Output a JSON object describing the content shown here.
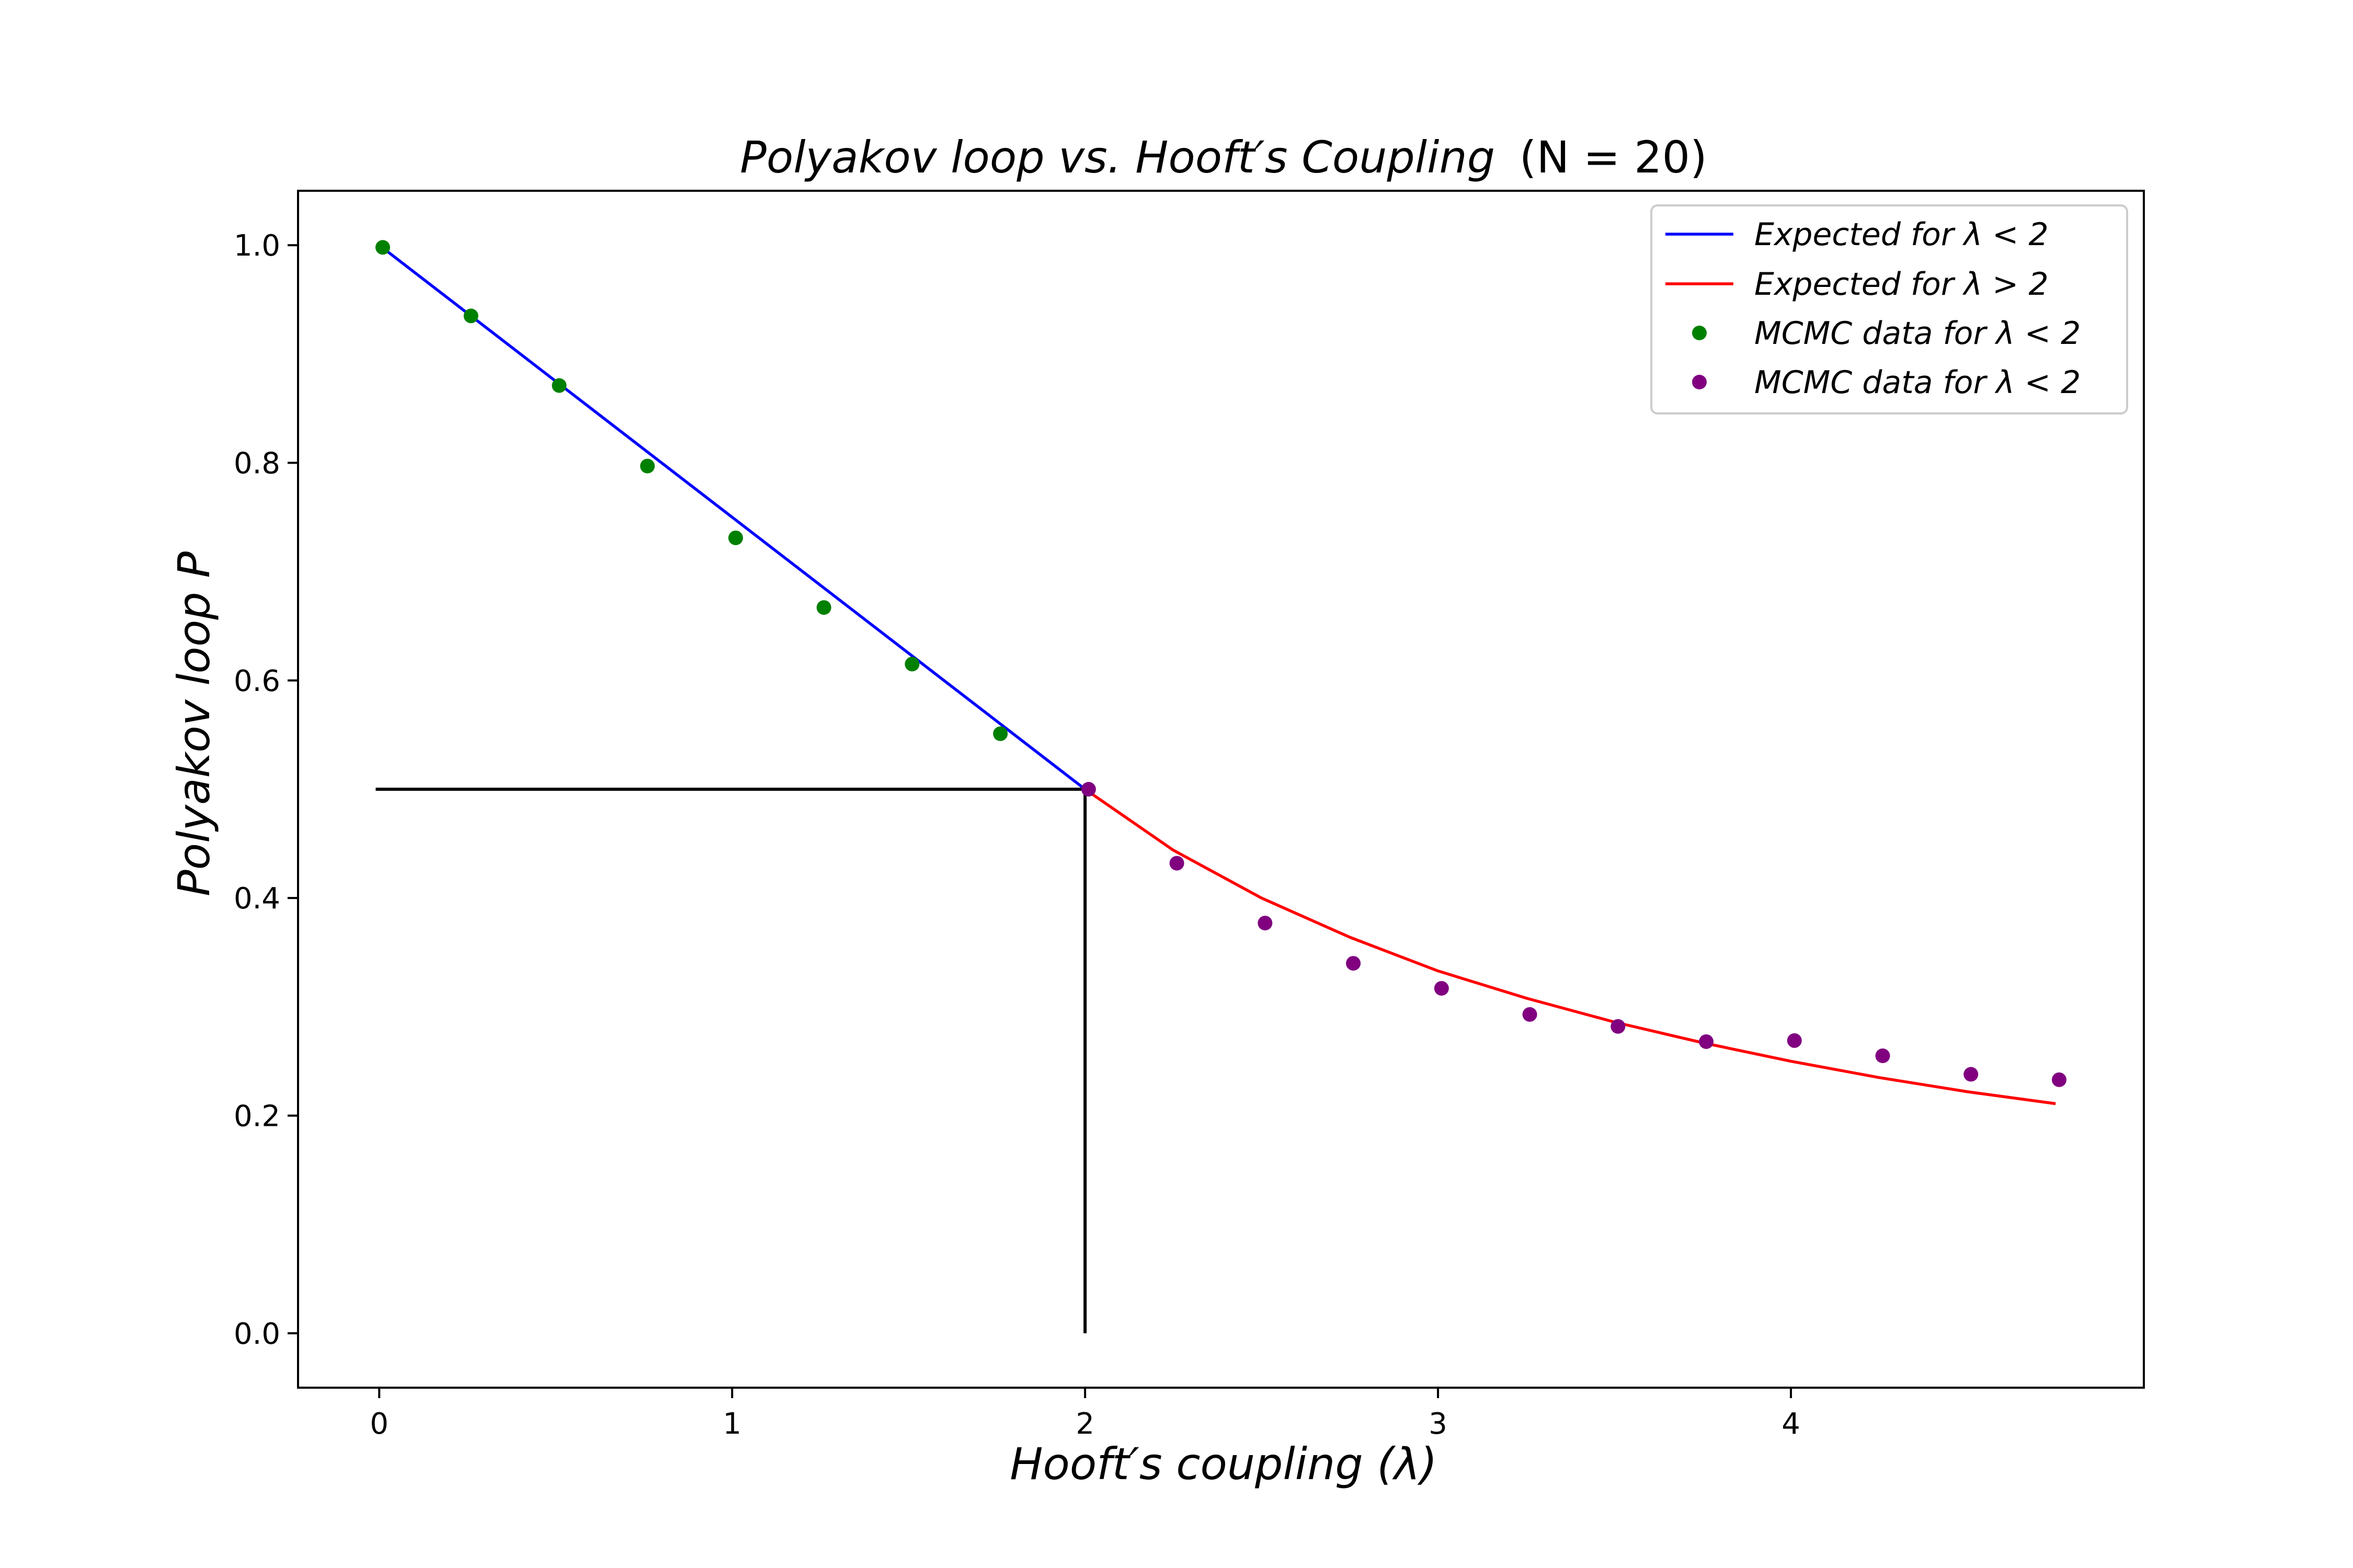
{
  "chart_data": {
    "type": "line",
    "title": "Polyakov loop vs. Hooft's Coupling (N = 20)",
    "title_parts": {
      "main": "Polyakov loop vs. Hooft′s Coupling",
      "suffix": "(N = 20)"
    },
    "xlabel": "Hooft′s coupling (λ)",
    "ylabel": "Polyakov loop P",
    "xlim": [
      -0.23,
      5.0
    ],
    "ylim": [
      -0.05,
      1.05
    ],
    "x_ticks": [
      0,
      1,
      2,
      3,
      4
    ],
    "x_tick_labels": [
      "0",
      "1",
      "2",
      "3",
      "4"
    ],
    "y_ticks": [
      0.0,
      0.2,
      0.4,
      0.6,
      0.8,
      1.0
    ],
    "y_tick_labels": [
      "0.0",
      "0.2",
      "0.4",
      "0.6",
      "0.8",
      "1.0"
    ],
    "grid": false,
    "legend_position": "top-right",
    "series": [
      {
        "name": "Expected for λ < 2",
        "kind": "line",
        "color": "#0000ff",
        "x": [
          0,
          2
        ],
        "y": [
          1.0,
          0.5
        ]
      },
      {
        "name": "Expected for λ > 2",
        "kind": "line",
        "color": "#ff0000",
        "x": [
          2.0,
          2.25,
          2.5,
          2.75,
          3.0,
          3.25,
          3.5,
          3.75,
          4.0,
          4.25,
          4.5,
          4.75
        ],
        "y": [
          0.5,
          0.444,
          0.4,
          0.364,
          0.333,
          0.308,
          0.286,
          0.267,
          0.25,
          0.235,
          0.222,
          0.211
        ]
      },
      {
        "name": "MCMC data for λ < 2",
        "kind": "scatter",
        "color": "#008000",
        "x": [
          0.01,
          0.26,
          0.51,
          0.76,
          1.01,
          1.26,
          1.51,
          1.76
        ],
        "y": [
          0.998,
          0.935,
          0.871,
          0.797,
          0.731,
          0.667,
          0.615,
          0.551
        ]
      },
      {
        "name": "MCMC data for λ < 2",
        "kind": "scatter",
        "color": "#800080",
        "x": [
          2.01,
          2.26,
          2.51,
          2.76,
          3.01,
          3.26,
          3.51,
          3.76,
          4.01,
          4.26,
          4.51,
          4.76
        ],
        "y": [
          0.5,
          0.432,
          0.377,
          0.34,
          0.317,
          0.293,
          0.282,
          0.268,
          0.269,
          0.255,
          0.238,
          0.233
        ]
      }
    ],
    "reference_lines": [
      {
        "x": [
          -0.01,
          2.0
        ],
        "y": [
          0.5,
          0.5
        ],
        "color": "#000000"
      },
      {
        "x": [
          2.0,
          2.0
        ],
        "y": [
          0.5,
          0.0
        ],
        "color": "#000000"
      }
    ]
  }
}
